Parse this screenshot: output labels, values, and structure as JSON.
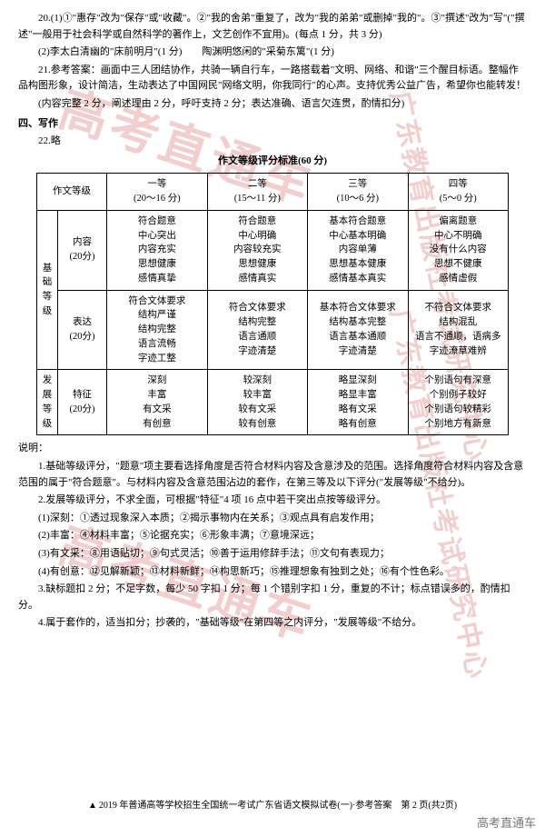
{
  "q20": {
    "line1": "20.(1)①\"惠存\"改为\"保存\"或\"收藏\"。②\"我的舍弟\"重复了，改为\"我的弟弟\"或删掉\"我的\"。③\"撰述\"改为\"写\"(\"撰述\"一般用于社会科学或自然科学的著作上，文艺创作不宜用)。(每点 1 分，共 3 分)",
    "line2": "(2)李太白清幽的\"床前明月\"(1 分)　　陶渊明悠闲的\"采菊东篱\"(1 分)"
  },
  "q21": {
    "line1": "21.参考答案：画面中三人团结协作，共骑一辆自行车，一路搭载着\"文明、网络、和谐\"三个醒目标语。整幅作品构图形象，设计简洁，生动表达了中国网民\"网络文明，你我同行\"的心声。支持优秀公益广告，希望你也能转发！",
    "line2": "(内容完整 2 分，阐述理由 2 分，呼吁支持 2 分；表达准确、语言欠连贯，酌情扣分)"
  },
  "section4": "四、写作",
  "q22": "22.略",
  "table_title": "作文等级评分标准(60 分)",
  "headers": {
    "h0": "作文等级",
    "h1": "一等\n(20～16 分)",
    "h2": "二等\n(15～11 分)",
    "h3": "三等\n(10～6 分)",
    "h4": "四等\n(5～0 分)"
  },
  "vlabels": {
    "base": "基础等级",
    "dev": "发展等级"
  },
  "rows": {
    "content_label": "内容\n(20分)",
    "content": {
      "c1": "符合题意\n中心突出\n内容充实\n思想健康\n感情真挚",
      "c2": "符合题意\n中心明确\n内容较充实\n思想健康\n感情真实",
      "c3": "基本符合题意\n中心基本明确\n内容单薄\n思想基本健康\n感情基本真实",
      "c4": "偏离题意\n中心不明确\n没有什么内容\n思想不健康\n感情虚假"
    },
    "express_label": "表达\n(20分)",
    "express": {
      "c1": "符合文体要求\n结构严谨\n结构完整\n语言流畅\n字迹工整",
      "c2": "符合文体要求\n结构完整\n语言通顺\n字迹清楚",
      "c3": "基本符合文体要求\n结构基本完整\n语言基本通顺\n字迹清楚",
      "c4": "不符合文体要求\n结构混乱\n语言不通顺，语病多\n字迹潦草难辨"
    },
    "feature_label": "特征\n(20分)",
    "feature": {
      "c1": "深刻\n丰富\n有文采\n有创意",
      "c2": "较深刻\n较丰富\n较有文采\n较有创意",
      "c3": "略显深刻\n略显丰富\n略有文采\n略有创意",
      "c4": "个别语句有深意\n个别例子较好\n个别语句较精彩\n个别地方有新意"
    }
  },
  "notes": {
    "header": "说明：",
    "n1": "1.基础等级评分，\"题意\"项主要看选择角度是否符合材料内容及含意涉及的范围。选择角度符合材料内容及含意范围的属于\"符合题意\"。与材料内容及含意范围沾边的套作，在第三等及以下评分(\"发展等级\"不给分)。",
    "n2": "2.发展等级评分，不求全面，可根据\"特征\"4 项 16 点中若干突出点按等级评分。",
    "n2a": "(1)深刻：①透过现象深入本质；②揭示事物内在关系；③观点具有启发作用；",
    "n2b": "(2)丰富：④材料丰富；⑤论据充实；⑥形象丰满；⑦意境深远；",
    "n2c": "(3)有文采：⑧用语贴切；⑨句式灵活；⑩善于运用修辞手法；⑪文句有表现力；",
    "n2d": "(4)有创意：⑫见解新颖；⑬材料新鲜；⑭构思新巧；⑮推理想象有独到之处；⑯有个性色彩。",
    "n3": "3.缺标题扣 2 分；不足字数，每少 50 字扣 1 分；每 1 个错别字扣 1 分，重复的不计；标点错误多的，酌情扣分。",
    "n4": "4.属于套作的，适当扣分；抄袭的，\"基础等级\"在第四等之内评分，\"发展等级\"不给分。"
  },
  "footer": "2019 年普通高等学校招生全国统一考试广东省语文模拟试卷(一)·参考答案　第 2 页(共2页)",
  "brand": "高考直通车",
  "watermark_main": "高考直通车",
  "watermark_side": "广东教育出版社考试研究中心"
}
